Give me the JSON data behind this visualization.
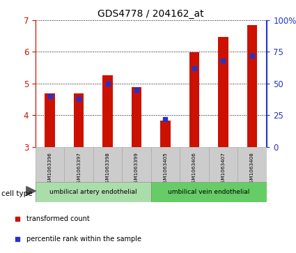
{
  "title": "GDS4778 / 204162_at",
  "samples": [
    "GSM1063396",
    "GSM1063397",
    "GSM1063398",
    "GSM1063399",
    "GSM1063405",
    "GSM1063406",
    "GSM1063407",
    "GSM1063408"
  ],
  "transformed_count": [
    4.68,
    4.68,
    5.25,
    4.88,
    3.82,
    5.98,
    6.48,
    6.85
  ],
  "percentile_rank": [
    40,
    38,
    50,
    45,
    22,
    62,
    68,
    72
  ],
  "y_min": 3,
  "y_max": 7,
  "y_ticks": [
    3,
    4,
    5,
    6,
    7
  ],
  "y2_ticks": [
    0,
    25,
    50,
    75,
    100
  ],
  "y2_labels": [
    "0",
    "25",
    "50",
    "75",
    "100%"
  ],
  "bar_color": "#cc1100",
  "dot_color": "#2233cc",
  "grid_color": "#000000",
  "bg_color": "#ffffff",
  "sample_box_color": "#cccccc",
  "cell_type_groups": [
    {
      "label": "umbilical artery endothelial",
      "start": 0,
      "end": 4,
      "color": "#aaddaa"
    },
    {
      "label": "umbilical vein endothelial",
      "start": 4,
      "end": 8,
      "color": "#66cc66"
    }
  ],
  "legend_items": [
    {
      "label": "transformed count",
      "color": "#cc1100",
      "marker": "s"
    },
    {
      "label": "percentile rank within the sample",
      "color": "#2233cc",
      "marker": "s"
    }
  ],
  "cell_type_label": "cell type",
  "ylabel_left_color": "#cc1100",
  "ylabel_right_color": "#2233cc",
  "bar_width": 0.35,
  "figsize": [
    4.25,
    3.63
  ],
  "dpi": 100
}
